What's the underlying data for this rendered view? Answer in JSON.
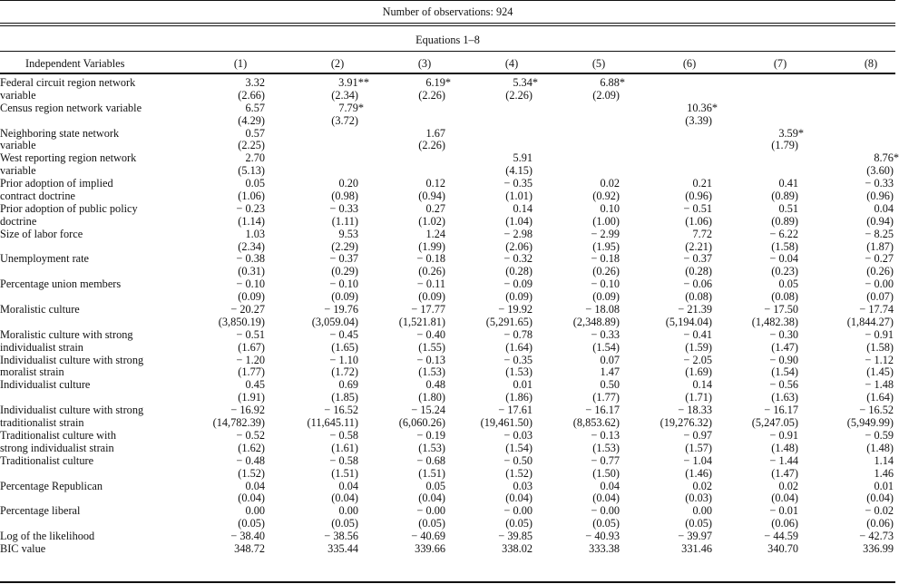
{
  "title": "Number of observations: 924",
  "subtitle": "Equations 1–8",
  "header": {
    "label": "Independent Variables",
    "columns": [
      "(1)",
      "(2)",
      "(3)",
      "(4)",
      "(5)",
      "(6)",
      "(7)",
      "(8)"
    ]
  },
  "variables": [
    {
      "label": [
        "Federal circuit region network",
        "variable"
      ],
      "coef": [
        "3.32",
        "3.91**",
        "6.19*",
        "5.34*",
        "6.88*",
        "",
        "",
        ""
      ],
      "se": [
        "(2.66)",
        "(2.34)",
        "(2.26)",
        "(2.26)",
        "(2.09)",
        "",
        "",
        ""
      ]
    },
    {
      "label": [
        "Census region network variable",
        ""
      ],
      "coef": [
        "6.57",
        "7.79*",
        "",
        "",
        "",
        "10.36*",
        "",
        ""
      ],
      "se": [
        "(4.29)",
        "(3.72)",
        "",
        "",
        "",
        "(3.39)",
        "",
        ""
      ]
    },
    {
      "label": [
        "Neighboring state network",
        "variable"
      ],
      "coef": [
        "0.57",
        "",
        "1.67",
        "",
        "",
        "",
        "3.59*",
        ""
      ],
      "se": [
        "(2.25)",
        "",
        "(2.26)",
        "",
        "",
        "",
        "(1.79)",
        ""
      ]
    },
    {
      "label": [
        "West reporting region network",
        "variable"
      ],
      "coef": [
        "2.70",
        "",
        "",
        "5.91",
        "",
        "",
        "",
        "8.76*"
      ],
      "se": [
        "(5.13)",
        "",
        "",
        "(4.15)",
        "",
        "",
        "",
        "(3.60)"
      ]
    },
    {
      "label": [
        "Prior adoption of implied",
        "contract doctrine"
      ],
      "coef": [
        "0.05",
        "0.20",
        "0.12",
        "− 0.35",
        "0.02",
        "0.21",
        "0.41",
        "− 0.33"
      ],
      "se": [
        "(1.06)",
        "(0.98)",
        "(0.94)",
        "(1.01)",
        "(0.92)",
        "(0.96)",
        "(0.89)",
        "(0.96)"
      ]
    },
    {
      "label": [
        "Prior adoption of public policy",
        "doctrine"
      ],
      "coef": [
        "− 0.23",
        "− 0.33",
        "0.27",
        "0.14",
        "0.10",
        "− 0.51",
        "0.51",
        "0.04"
      ],
      "se": [
        "(1.14)",
        "(1.11)",
        "(1.02)",
        "(1.04)",
        "(1.00)",
        "(1.06)",
        "(0.89)",
        "(0.94)"
      ]
    },
    {
      "label": [
        "Size of labor force",
        ""
      ],
      "coef": [
        "1.03",
        "9.53",
        "1.24",
        "− 2.98",
        "− 2.99",
        "7.72",
        "− 6.22",
        "− 8.25"
      ],
      "se": [
        "(2.34)",
        "(2.29)",
        "(1.99)",
        "(2.06)",
        "(1.95)",
        "(2.21)",
        "(1.58)",
        "(1.87)"
      ]
    },
    {
      "label": [
        "Unemployment rate",
        ""
      ],
      "coef": [
        "− 0.38",
        "− 0.37",
        "− 0.18",
        "− 0.32",
        "− 0.18",
        "− 0.37",
        "− 0.04",
        "− 0.27"
      ],
      "se": [
        "(0.31)",
        "(0.29)",
        "(0.26)",
        "(0.28)",
        "(0.26)",
        "(0.28)",
        "(0.23)",
        "(0.26)"
      ]
    },
    {
      "label": [
        "Percentage union members",
        ""
      ],
      "coef": [
        "− 0.10",
        "− 0.10",
        "− 0.11",
        "− 0.09",
        "− 0.10",
        "− 0.06",
        "0.05",
        "− 0.00"
      ],
      "se": [
        "(0.09)",
        "(0.09)",
        "(0.09)",
        "(0.09)",
        "(0.09)",
        "(0.08)",
        "(0.08)",
        "(0.07)"
      ]
    },
    {
      "label": [
        "Moralistic culture",
        ""
      ],
      "coef": [
        "− 20.27",
        "− 19.76",
        "− 17.77",
        "− 19.92",
        "− 18.08",
        "− 21.39",
        "− 17.50",
        "− 17.74"
      ],
      "se": [
        "(3,850.19)",
        "(3,059.04)",
        "(1,521.81)",
        "(5,291.65)",
        "(2,348.89)",
        "(5,194.04)",
        "(1,482.38)",
        "(1,844.27)"
      ]
    },
    {
      "label": [
        "Moralistic culture with strong",
        "individualist strain"
      ],
      "coef": [
        "− 0.51",
        "− 0.45",
        "− 0.40",
        "− 0.78",
        "− 0.33",
        "− 0.41",
        "− 0.30",
        "− 0.91"
      ],
      "se": [
        "(1.67)",
        "(1.65)",
        "(1.55)",
        "(1.64)",
        "(1.54)",
        "(1.59)",
        "(1.47)",
        "(1.58)"
      ]
    },
    {
      "label": [
        "Individualist culture with strong",
        "moralist strain"
      ],
      "coef": [
        "− 1.20",
        "− 1.10",
        "− 0.13",
        "− 0.35",
        "0.07",
        "− 2.05",
        "− 0.90",
        "− 1.12"
      ],
      "se": [
        "(1.77)",
        "(1.72)",
        "(1.53)",
        "(1.53)",
        "1.47",
        "(1.69)",
        "(1.54)",
        "(1.45)"
      ]
    },
    {
      "label": [
        "Individualist culture",
        ""
      ],
      "coef": [
        "0.45",
        "0.69",
        "0.48",
        "0.01",
        "0.50",
        "0.14",
        "− 0.56",
        "− 1.48"
      ],
      "se": [
        "(1.91)",
        "(1.85)",
        "(1.80)",
        "(1.86)",
        "(1.77)",
        "(1.71)",
        "(1.63)",
        "(1.64)"
      ]
    },
    {
      "label": [
        "Individualist culture with strong",
        "traditionalist strain"
      ],
      "coef": [
        "− 16.92",
        "− 16.52",
        "− 15.24",
        "− 17.61",
        "− 16.17",
        "− 18.33",
        "− 16.17",
        "− 16.52"
      ],
      "se": [
        "(14,782.39)",
        "(11,645.11)",
        "(6,060.26)",
        "(19,461.50)",
        "(8,853.62)",
        "(19,276.32)",
        "(5,247.05)",
        "(5,949.99)"
      ]
    },
    {
      "label": [
        "Traditionalist culture with",
        "strong individualist strain"
      ],
      "coef": [
        "− 0.52",
        "− 0.58",
        "− 0.19",
        "− 0.03",
        "− 0.13",
        "− 0.97",
        "− 0.91",
        "− 0.59"
      ],
      "se": [
        "(1.62)",
        "(1.61)",
        "(1.53)",
        "(1.54)",
        "(1.53)",
        "(1.57)",
        "(1.48)",
        "(1.48)"
      ]
    },
    {
      "label": [
        "Traditionalist culture",
        ""
      ],
      "coef": [
        "− 0.48",
        "− 0.58",
        "− 0.68",
        "− 0.50",
        "− 0.77",
        "− 1.04",
        "− 1.44",
        "1.14"
      ],
      "se": [
        "(1.52)",
        "(1.51)",
        "(1.51)",
        "(1.52)",
        "(1.50)",
        "(1.46)",
        "(1.47)",
        "1.46"
      ]
    },
    {
      "label": [
        "Percentage Republican",
        ""
      ],
      "coef": [
        "0.04",
        "0.04",
        "0.05",
        "0.03",
        "0.04",
        "0.02",
        "0.02",
        "0.01"
      ],
      "se": [
        "(0.04)",
        "(0.04)",
        "(0.04)",
        "(0.04)",
        "(0.04)",
        "(0.03)",
        "(0.04)",
        "(0.04)"
      ]
    },
    {
      "label": [
        "Percentage liberal",
        ""
      ],
      "coef": [
        "0.00",
        "0.00",
        "− 0.00",
        "− 0.00",
        "− 0.00",
        "0.00",
        "− 0.01",
        "− 0.02"
      ],
      "se": [
        "(0.05)",
        "(0.05)",
        "(0.05)",
        "(0.05)",
        "(0.05)",
        "(0.05)",
        "(0.06)",
        "(0.06)"
      ]
    }
  ],
  "summary": [
    {
      "label": "Log of the likelihood",
      "values": [
        "− 38.40",
        "− 38.56",
        "− 40.69",
        "− 39.85",
        "− 40.93",
        "− 39.97",
        "− 44.59",
        "− 42.73"
      ]
    },
    {
      "label": "BIC value",
      "values": [
        "348.72",
        "335.44",
        "339.66",
        "338.02",
        "333.38",
        "331.46",
        "340.70",
        "336.99"
      ]
    }
  ]
}
